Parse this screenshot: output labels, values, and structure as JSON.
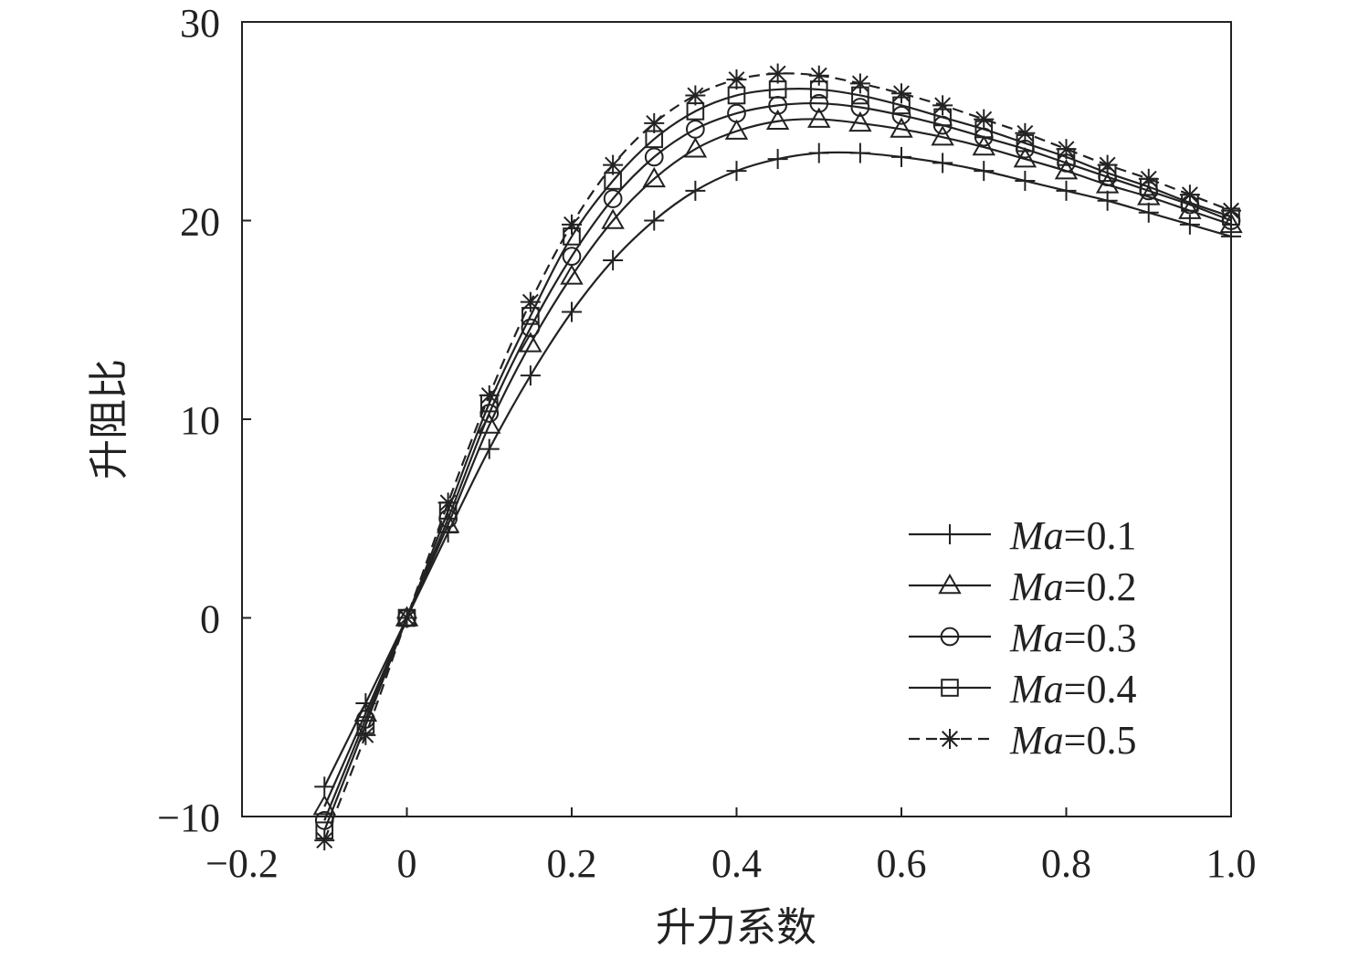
{
  "chart_data": {
    "type": "line",
    "xlabel": "升力系数",
    "ylabel": "升阻比",
    "xlim": [
      -0.2,
      1.0
    ],
    "ylim": [
      -10,
      30
    ],
    "xticks": [
      "−0.2",
      "0",
      "0.2",
      "0.4",
      "0.6",
      "0.8",
      "1.0"
    ],
    "xtick_values": [
      -0.2,
      0,
      0.2,
      0.4,
      0.6,
      0.8,
      1.0
    ],
    "yticks": [
      "−10",
      "0",
      "10",
      "20",
      "30"
    ],
    "ytick_values": [
      -10,
      0,
      10,
      20,
      30
    ],
    "grid": false,
    "legend_position": "bottom-right",
    "x": [
      -0.1,
      -0.05,
      0,
      0.05,
      0.1,
      0.15,
      0.2,
      0.25,
      0.3,
      0.35,
      0.4,
      0.45,
      0.5,
      0.55,
      0.6,
      0.65,
      0.7,
      0.75,
      0.8,
      0.85,
      0.9,
      0.95,
      1.0
    ],
    "series": [
      {
        "name": "Ma=0.1",
        "name_italic": "Ma",
        "name_rest": "=0.1",
        "marker": "plus",
        "line_style": "solid",
        "values": [
          -8.5,
          -4.3,
          0,
          4.3,
          8.5,
          12.2,
          15.4,
          18.0,
          20.0,
          21.5,
          22.5,
          23.1,
          23.4,
          23.4,
          23.2,
          22.9,
          22.5,
          22.0,
          21.5,
          21.0,
          20.4,
          19.8,
          19.2
        ]
      },
      {
        "name": "Ma=0.2",
        "name_italic": "Ma",
        "name_rest": "=0.2",
        "marker": "triangle",
        "line_style": "solid",
        "values": [
          -9.5,
          -4.8,
          0,
          4.7,
          9.7,
          13.8,
          17.2,
          20.0,
          22.1,
          23.6,
          24.5,
          25.0,
          25.1,
          24.9,
          24.6,
          24.2,
          23.7,
          23.1,
          22.5,
          21.8,
          21.2,
          20.5,
          19.8
        ]
      },
      {
        "name": "Ma=0.3",
        "name_italic": "Ma",
        "name_rest": "=0.3",
        "marker": "circle",
        "line_style": "solid",
        "values": [
          -10.2,
          -5.1,
          0,
          5.0,
          10.3,
          14.6,
          18.2,
          21.1,
          23.2,
          24.6,
          25.4,
          25.8,
          25.9,
          25.7,
          25.3,
          24.8,
          24.2,
          23.6,
          22.9,
          22.2,
          21.5,
          20.8,
          20.0
        ]
      },
      {
        "name": "Ma=0.4",
        "name_italic": "Ma",
        "name_rest": "=0.4",
        "marker": "square",
        "line_style": "solid",
        "values": [
          -10.7,
          -5.4,
          0,
          5.4,
          10.8,
          15.2,
          19.2,
          22.0,
          24.1,
          25.5,
          26.3,
          26.6,
          26.6,
          26.3,
          25.8,
          25.2,
          24.6,
          23.9,
          23.2,
          22.4,
          21.7,
          20.9,
          20.2
        ]
      },
      {
        "name": "Ma=0.5",
        "name_italic": "Ma",
        "name_rest": "=0.5",
        "marker": "asterisk",
        "line_style": "dashed",
        "values": [
          -11.2,
          -5.9,
          0,
          5.8,
          11.2,
          15.9,
          19.8,
          22.8,
          24.9,
          26.3,
          27.1,
          27.4,
          27.3,
          26.9,
          26.4,
          25.8,
          25.1,
          24.4,
          23.6,
          22.8,
          22.1,
          21.3,
          20.5
        ]
      }
    ]
  }
}
